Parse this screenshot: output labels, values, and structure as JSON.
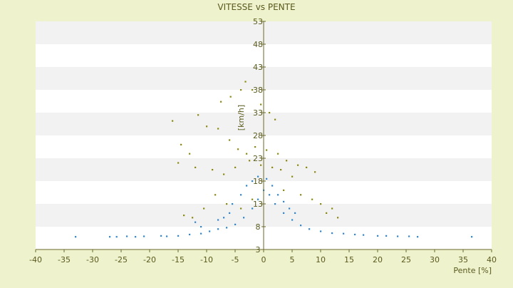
{
  "chart_data": {
    "type": "scatter",
    "title": "VITESSE vs PENTE",
    "xlabel": "Pente [%]",
    "ylabel": "[km/h]",
    "xlim": [
      -40,
      40
    ],
    "ylim": [
      3,
      53
    ],
    "x_ticks": [
      -40,
      -35,
      -30,
      -25,
      -20,
      -15,
      -10,
      -5,
      0,
      5,
      10,
      15,
      20,
      25,
      30,
      35,
      40
    ],
    "y_ticks": [
      3,
      8,
      13,
      18,
      23,
      28,
      33,
      38,
      43,
      48,
      53
    ],
    "grid": "horizontal bands",
    "legend": "none",
    "colors": {
      "background": "#eef2cd",
      "plot_band_light": "#ffffff",
      "plot_band_dark": "#f2f2f2",
      "series_1": "#8a8a10",
      "series_2": "#2f86d6",
      "text": "#5a5a1e"
    },
    "series": [
      {
        "marker_color": "#8a8a10",
        "points": [
          [
            -11.5,
            32.5
          ],
          [
            -16,
            31.2
          ],
          [
            -7.5,
            35.4
          ],
          [
            -5.8,
            36.5
          ],
          [
            -4,
            38
          ],
          [
            -3.2,
            39.8
          ],
          [
            -2,
            38
          ],
          [
            -0.5,
            34.8
          ],
          [
            1,
            33
          ],
          [
            2,
            31.5
          ],
          [
            -8,
            29.5
          ],
          [
            -10,
            30
          ],
          [
            -6,
            27
          ],
          [
            -4.5,
            25
          ],
          [
            -3,
            24
          ],
          [
            -1.5,
            25.5
          ],
          [
            0.5,
            24.8
          ],
          [
            2.5,
            24
          ],
          [
            4,
            22.5
          ],
          [
            6,
            21.5
          ],
          [
            7.5,
            21
          ],
          [
            9,
            20
          ],
          [
            -9,
            20.5
          ],
          [
            -7,
            19.5
          ],
          [
            -5,
            21
          ],
          [
            -2.5,
            22.5
          ],
          [
            -0.5,
            21.5
          ],
          [
            1.5,
            21
          ],
          [
            3,
            20.5
          ],
          [
            5,
            19
          ],
          [
            -12,
            21
          ],
          [
            -13,
            24
          ],
          [
            -14.5,
            26
          ],
          [
            -15,
            22
          ],
          [
            -8.5,
            15
          ],
          [
            -6.5,
            13
          ],
          [
            -4,
            12
          ],
          [
            -2,
            14
          ],
          [
            3.5,
            16
          ],
          [
            6.5,
            15
          ],
          [
            8.5,
            14
          ],
          [
            10,
            13
          ],
          [
            11,
            11
          ],
          [
            12,
            12
          ],
          [
            13,
            10
          ],
          [
            -10.5,
            12
          ],
          [
            -12.5,
            10
          ],
          [
            -14,
            10.5
          ]
        ]
      },
      {
        "marker_color": "#2f86d6",
        "points": [
          [
            -33,
            5.8
          ],
          [
            -27,
            5.8
          ],
          [
            -25.8,
            5.8
          ],
          [
            -24,
            5.9
          ],
          [
            -22.5,
            5.8
          ],
          [
            -21,
            5.9
          ],
          [
            -18,
            6
          ],
          [
            -17,
            5.9
          ],
          [
            -15,
            6
          ],
          [
            -13,
            6.3
          ],
          [
            -11,
            6.5
          ],
          [
            -9.5,
            7
          ],
          [
            -8,
            7.5
          ],
          [
            -6.5,
            7.8
          ],
          [
            -5,
            8.5
          ],
          [
            -3.5,
            10
          ],
          [
            -2,
            12
          ],
          [
            -1,
            14
          ],
          [
            0,
            16
          ],
          [
            1,
            15
          ],
          [
            2,
            13
          ],
          [
            3.5,
            11
          ],
          [
            5,
            9.5
          ],
          [
            6.5,
            8.3
          ],
          [
            8,
            7.5
          ],
          [
            10,
            7
          ],
          [
            12,
            6.6
          ],
          [
            14,
            6.5
          ],
          [
            16,
            6.3
          ],
          [
            17.5,
            6.2
          ],
          [
            20,
            6
          ],
          [
            21.5,
            6
          ],
          [
            23.5,
            5.9
          ],
          [
            25.5,
            5.9
          ],
          [
            27,
            5.8
          ],
          [
            36.5,
            5.8
          ],
          [
            -4,
            15
          ],
          [
            -3,
            17
          ],
          [
            -2,
            18
          ],
          [
            -1,
            19
          ],
          [
            0.5,
            18.5
          ],
          [
            1.5,
            17
          ],
          [
            2.5,
            15
          ],
          [
            3.5,
            13.5
          ],
          [
            4.5,
            12
          ],
          [
            5.5,
            11
          ],
          [
            -5.5,
            13
          ],
          [
            -6,
            11
          ],
          [
            -7,
            10
          ],
          [
            -8,
            9.5
          ],
          [
            -12,
            9
          ],
          [
            -11,
            8
          ]
        ]
      }
    ]
  }
}
